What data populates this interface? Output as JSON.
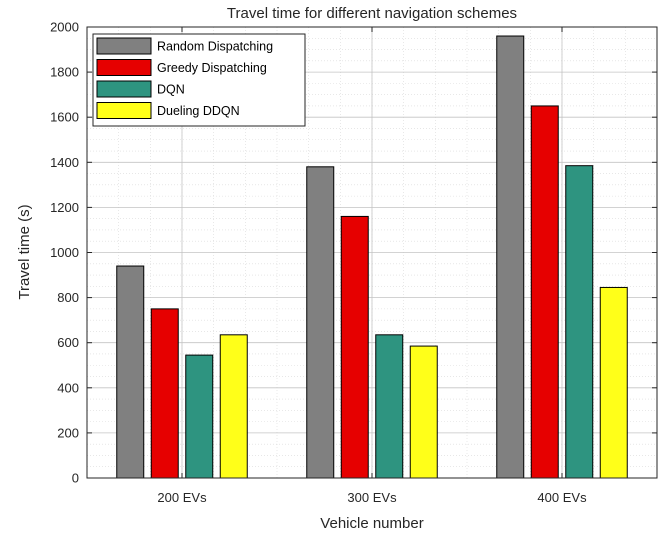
{
  "chart_data": {
    "type": "bar",
    "title": "Travel time for different navigation schemes",
    "xlabel": "Vehicle number",
    "ylabel": "Travel time (s)",
    "categories": [
      "200 EVs",
      "300 EVs",
      "400 EVs"
    ],
    "ylim": [
      0,
      2000
    ],
    "yticks": [
      0,
      200,
      400,
      600,
      800,
      1000,
      1200,
      1400,
      1600,
      1800,
      2000
    ],
    "grid": true,
    "legend_position": "top-left",
    "series": [
      {
        "name": "Random Dispatching",
        "color": "#808080",
        "values": [
          940,
          1380,
          1960
        ]
      },
      {
        "name": "Greedy Dispatching",
        "color": "#e60000",
        "values": [
          750,
          1160,
          1650
        ]
      },
      {
        "name": "DQN",
        "color": "#2e9480",
        "values": [
          545,
          635,
          1385
        ]
      },
      {
        "name": "Dueling DDQN",
        "color": "#ffff19",
        "values": [
          635,
          585,
          845
        ]
      }
    ]
  }
}
